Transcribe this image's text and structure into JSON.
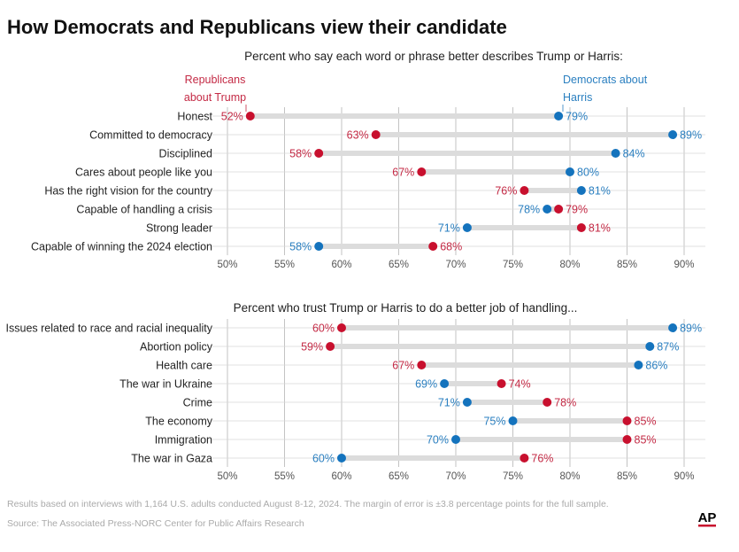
{
  "title": "How Democrats and Republicans view their candidate",
  "legend": {
    "rep": [
      "Republicans",
      "about Trump"
    ],
    "dem": [
      "Democrats about",
      "Harris"
    ]
  },
  "colors": {
    "rep": "#c8102e",
    "dem": "#1473bd",
    "rep_text": "#c42a45",
    "dem_text": "#2a7fc0"
  },
  "chart_data": [
    {
      "type": "dot-plot",
      "title": "Percent who say each word or phrase better describes Trump or Harris:",
      "xlim": [
        50,
        92
      ],
      "ticks": [
        50,
        55,
        60,
        65,
        70,
        75,
        80,
        85,
        90
      ],
      "series": [
        {
          "name": "Republicans about Trump",
          "key": "rep"
        },
        {
          "name": "Democrats about Harris",
          "key": "dem"
        }
      ],
      "categories": [
        "Honest",
        "Committed to democracy",
        "Disciplined",
        "Cares about people like you",
        "Has the right vision for the country",
        "Capable of handling a crisis",
        "Strong leader",
        "Capable of winning the 2024 election"
      ],
      "rep": [
        52,
        63,
        58,
        67,
        76,
        79,
        81,
        68
      ],
      "dem": [
        79,
        89,
        84,
        80,
        81,
        78,
        71,
        58
      ]
    },
    {
      "type": "dot-plot",
      "title": "Percent who trust Trump or Harris to do a better job of handling...",
      "xlim": [
        50,
        92
      ],
      "ticks": [
        50,
        55,
        60,
        65,
        70,
        75,
        80,
        85,
        90
      ],
      "series": [
        {
          "name": "Republicans about Trump",
          "key": "rep"
        },
        {
          "name": "Democrats about Harris",
          "key": "dem"
        }
      ],
      "categories": [
        "Issues related to race and racial inequality",
        "Abortion policy",
        "Health care",
        "The war in Ukraine",
        "Crime",
        "The economy",
        "Immigration",
        "The war in Gaza"
      ],
      "rep": [
        60,
        59,
        67,
        74,
        78,
        85,
        85,
        76
      ],
      "dem": [
        89,
        87,
        86,
        69,
        71,
        75,
        70,
        60
      ]
    }
  ],
  "footer": {
    "note": "Results based on interviews with 1,164 U.S. adults conducted August 8-12, 2024. The margin of error is ±3.8 percentage points for the full sample.",
    "source": "Source: The Associated Press-NORC Center for Public Affairs Research",
    "logo": "AP"
  }
}
